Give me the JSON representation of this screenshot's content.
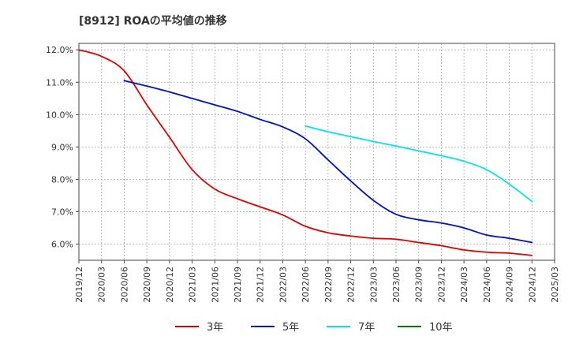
{
  "chart_data": {
    "type": "line",
    "title": "[8912]  ROAの平均値の推移",
    "xlabel": "",
    "ylabel": "",
    "y_unit": "%",
    "ylim": [
      5.5,
      12.2
    ],
    "yticks": [
      6.0,
      7.0,
      8.0,
      9.0,
      10.0,
      11.0,
      12.0
    ],
    "ytick_labels": [
      "6.0%",
      "7.0%",
      "8.0%",
      "9.0%",
      "10.0%",
      "11.0%",
      "12.0%"
    ],
    "x_categories": [
      "2019/12",
      "2020/03",
      "2020/06",
      "2020/09",
      "2020/12",
      "2021/03",
      "2021/06",
      "2021/09",
      "2021/12",
      "2022/03",
      "2022/06",
      "2022/09",
      "2022/12",
      "2023/03",
      "2023/06",
      "2023/09",
      "2023/12",
      "2024/03",
      "2024/06",
      "2024/09",
      "2024/12",
      "2025/03"
    ],
    "grid": true,
    "legend_position": "bottom",
    "series": [
      {
        "name": "3年",
        "color": "#e00000",
        "x": [
          "2019/12",
          "2020/03",
          "2020/06",
          "2020/09",
          "2020/12",
          "2021/03",
          "2021/06",
          "2021/09",
          "2021/12",
          "2022/03",
          "2022/06",
          "2022/09",
          "2022/12",
          "2023/03",
          "2023/06",
          "2023/09",
          "2023/12",
          "2024/03",
          "2024/06",
          "2024/09",
          "2024/12"
        ],
        "values": [
          12.0,
          11.8,
          11.35,
          10.3,
          9.3,
          8.3,
          7.7,
          7.4,
          7.15,
          6.9,
          6.55,
          6.35,
          6.25,
          6.18,
          6.15,
          6.05,
          5.95,
          5.82,
          5.75,
          5.72,
          5.65
        ]
      },
      {
        "name": "5年",
        "color": "#0010c0",
        "x": [
          "2020/06",
          "2020/09",
          "2020/12",
          "2021/03",
          "2021/06",
          "2021/09",
          "2021/12",
          "2022/03",
          "2022/06",
          "2022/09",
          "2022/12",
          "2023/03",
          "2023/06",
          "2023/09",
          "2023/12",
          "2024/03",
          "2024/06",
          "2024/09",
          "2024/12"
        ],
        "values": [
          11.05,
          10.88,
          10.7,
          10.5,
          10.3,
          10.1,
          9.85,
          9.62,
          9.25,
          8.6,
          7.95,
          7.35,
          6.92,
          6.75,
          6.65,
          6.5,
          6.28,
          6.18,
          6.05
        ]
      },
      {
        "name": "7年",
        "color": "#00e6e6",
        "x": [
          "2022/06",
          "2022/09",
          "2022/12",
          "2023/03",
          "2023/06",
          "2023/09",
          "2023/12",
          "2024/03",
          "2024/06",
          "2024/09",
          "2024/12"
        ],
        "values": [
          9.65,
          9.47,
          9.32,
          9.17,
          9.03,
          8.88,
          8.73,
          8.56,
          8.3,
          7.85,
          7.32
        ]
      },
      {
        "name": "10年",
        "color": "#008000",
        "x": [],
        "values": []
      }
    ]
  }
}
